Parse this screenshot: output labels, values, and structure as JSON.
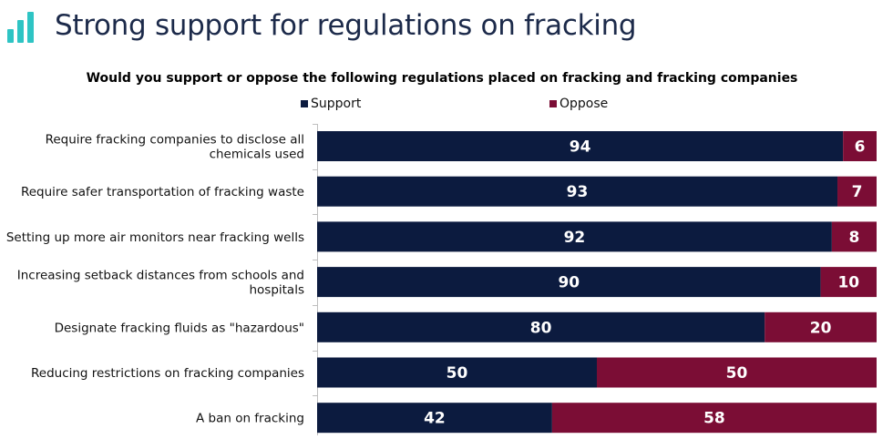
{
  "header": {
    "title": "Strong support for regulations on fracking",
    "logo_icon": "bar-chart-logo-icon"
  },
  "colors": {
    "support": "#0c1b3f",
    "oppose": "#7b0d35",
    "accent": "#2ec4c4"
  },
  "chart_data": {
    "type": "bar",
    "orientation": "horizontal",
    "stacked": true,
    "title": "Would you support or oppose the following regulations placed on fracking and fracking companies",
    "categories": [
      [
        "Require fracking companies to disclose all",
        "chemicals used"
      ],
      [
        "Require safer transportation of fracking waste"
      ],
      [
        "Setting up more air monitors near fracking wells"
      ],
      [
        "Increasing setback distances from schools and",
        "hospitals"
      ],
      [
        "Designate fracking fluids as \"hazardous\""
      ],
      [
        "Reducing restrictions on fracking companies"
      ],
      [
        "A ban on fracking"
      ]
    ],
    "series": [
      {
        "name": "Support",
        "values": [
          94,
          93,
          92,
          90,
          80,
          50,
          42
        ]
      },
      {
        "name": "Oppose",
        "values": [
          6,
          7,
          8,
          10,
          20,
          50,
          58
        ]
      }
    ],
    "xlim": [
      0,
      100
    ],
    "legend": "top",
    "grid": false
  }
}
